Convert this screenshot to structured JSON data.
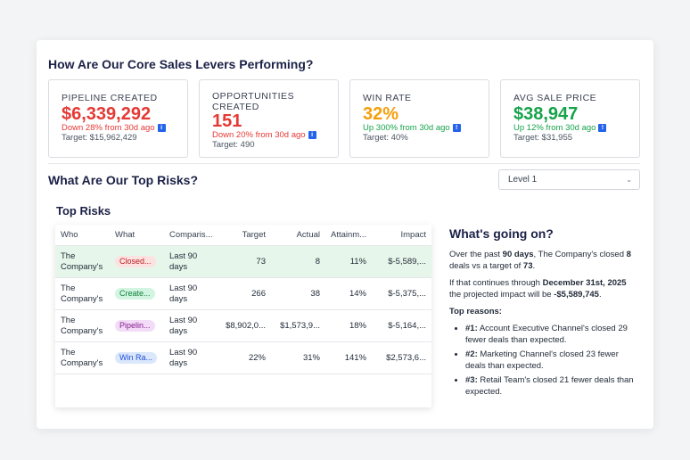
{
  "header": {
    "title": "How Are Our Core Sales Levers Performing?"
  },
  "kpis": [
    {
      "label": "PIPELINE CREATED",
      "value": "$6,339,292",
      "change": "Down 28% from 30d ago",
      "target": "Target: $15,962,429",
      "color": "#e53935"
    },
    {
      "label": "OPPORTUNITIES CREATED",
      "value": "151",
      "change": "Down 20% from 30d ago",
      "target": "Target: 490",
      "color": "#e53935"
    },
    {
      "label": "WIN RATE",
      "value": "32%",
      "change": "Up 300% from 30d ago",
      "target": "Target: 40%",
      "color": "#f59e0b"
    },
    {
      "label": "AVG SALE PRICE",
      "value": "$38,947",
      "change": "Up 12% from 30d ago",
      "target": "Target: $31,955",
      "color": "#16a34a"
    }
  ],
  "risks_section": {
    "title": "What Are Our Top Risks?",
    "level_select": "Level 1"
  },
  "table": {
    "title": "Top Risks",
    "columns": [
      "Who",
      "What",
      "Comparis...",
      "Target",
      "Actual",
      "Attainm...",
      "Impact"
    ],
    "rows": [
      {
        "who": "The Company's",
        "what": "Closed...",
        "what_bg": "#fde2e2",
        "what_color": "#b91c1c",
        "comparison": "Last 90 days",
        "target": "73",
        "actual": "8",
        "attainment": "11%",
        "impact": "$-5,589,..."
      },
      {
        "who": "The Company's",
        "what": "Create...",
        "what_bg": "#d1f5e0",
        "what_color": "#15803d",
        "comparison": "Last 90 days",
        "target": "266",
        "actual": "38",
        "attainment": "14%",
        "impact": "$-5,375,..."
      },
      {
        "who": "The Company's",
        "what": "Pipelin...",
        "what_bg": "#f3dcf7",
        "what_color": "#86198f",
        "comparison": "Last 90 days",
        "target": "$8,902,0...",
        "actual": "$1,573,9...",
        "attainment": "18%",
        "impact": "$-5,164,..."
      },
      {
        "who": "The Company's",
        "what": "Win Ra...",
        "what_bg": "#dbe7fb",
        "what_color": "#1d4ed8",
        "comparison": "Last 90 days",
        "target": "22%",
        "actual": "31%",
        "attainment": "141%",
        "impact": "$2,573,6..."
      }
    ]
  },
  "insight": {
    "title": "What's going on?",
    "p1_prefix": "Over the past ",
    "p1_days": "90 days",
    "p1_mid": ", The Company's closed ",
    "p1_count": "8",
    "p1_mid2": " deals vs a target of ",
    "p1_target": "73",
    "p1_end": ".",
    "p2_prefix": "If that continues through ",
    "p2_date": "December 31st, 2025",
    "p2_mid": " the projected impact will be ",
    "p2_impact": "-$5,589,745",
    "p2_end": ".",
    "reasons_title": "Top reasons:",
    "reasons": [
      {
        "rank": "#1:",
        "text": " Account Executive Channel's closed 29 fewer deals than expected."
      },
      {
        "rank": "#2:",
        "text": " Marketing Channel's closed 23 fewer deals than expected."
      },
      {
        "rank": "#3:",
        "text": " Retail Team's closed 21 fewer deals than expected."
      }
    ]
  }
}
